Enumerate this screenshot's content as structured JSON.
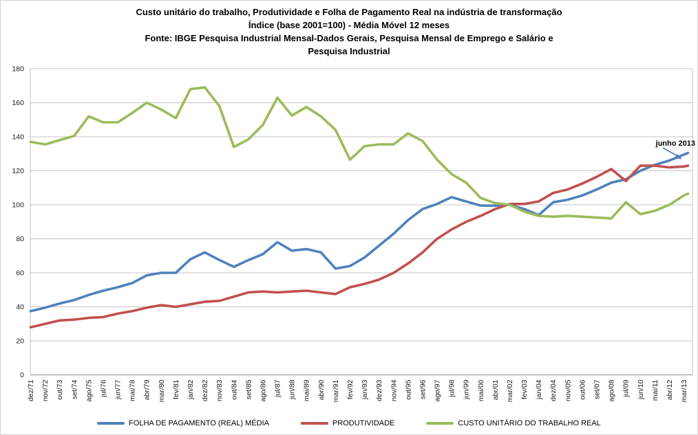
{
  "window": {
    "background": "#FFFFFF",
    "border_color": "#D3D3D3"
  },
  "chart_data": {
    "type": "line",
    "title_lines": [
      "Custo unitário do trabalho, Produtividade e Folha de Pagamento Real na indústria de transformação",
      "Índice (base 2001=100) - Média Móvel 12 meses",
      "Fonte: IBGE Pesquisa Industrial Mensal-Dados Gerais, Pesquisa Mensal de Emprego e Salário  e",
      "Pesquisa Industrial"
    ],
    "ylim": [
      0,
      180
    ],
    "yticks": [
      0,
      20,
      40,
      60,
      80,
      100,
      120,
      140,
      160,
      180
    ],
    "grid": true,
    "gridline_color": "#C3C3C3",
    "axis_line_color": "#8C8C8C",
    "legend_position": "bottom",
    "categories": [
      "dez/71",
      "nov/72",
      "out/73",
      "set/74",
      "ago/75",
      "jul/76",
      "jun/77",
      "mai/78",
      "abr/79",
      "mar/80",
      "fev/81",
      "jan/82",
      "dez/82",
      "nov/83",
      "out/84",
      "set/85",
      "ago/86",
      "jul/87",
      "jun/88",
      "mai/89",
      "abr/90",
      "mar/91",
      "fev/92",
      "jan/93",
      "dez/93",
      "nov/94",
      "out/95",
      "set/96",
      "ago/97",
      "jul/98",
      "jun/99",
      "mai/00",
      "abr/01",
      "mar/02",
      "fev/03",
      "jan/04",
      "dez/04",
      "nov/05",
      "out/06",
      "set/07",
      "ago/08",
      "jul/09",
      "jun/10",
      "mai/11",
      "abr/12",
      "mar/13"
    ],
    "series": [
      {
        "name": "FOLHA DE PAGAMENTO (REAL) MÉDIA",
        "color": "#4F81BD",
        "values": [
          37.5,
          39.5,
          42,
          44,
          47,
          49.5,
          51.5,
          54,
          58.5,
          60,
          60,
          68,
          72,
          67.5,
          63.5,
          67.5,
          71,
          78,
          73,
          74,
          72,
          62.5,
          64,
          69,
          76,
          83,
          91,
          97.5,
          100.5,
          104.5,
          102,
          99.5,
          99.5,
          100,
          97.5,
          94,
          101.5,
          103,
          105.5,
          109,
          113,
          115,
          120,
          123.5,
          126,
          129.5
        ],
        "end_value": 130.5
      },
      {
        "name": "PRODUTIVIDADE",
        "color": "#C0504D",
        "values": [
          28,
          30,
          32,
          32.5,
          33.5,
          34,
          36,
          37.5,
          39.5,
          41,
          40,
          41.5,
          43,
          43.5,
          46,
          48.5,
          49,
          48.5,
          49,
          49.5,
          48.5,
          47.5,
          51.5,
          53.5,
          56,
          60,
          65.5,
          72,
          80,
          85.5,
          90,
          93.5,
          97.5,
          100.5,
          100.5,
          102,
          107,
          109,
          112.5,
          116.5,
          121,
          114,
          123,
          123,
          122,
          122.5
        ],
        "end_value": 123
      },
      {
        "name": "CUSTO UNITÁRIO DO TRABALHO REAL",
        "color": "#9BBB59",
        "values": [
          137,
          135.5,
          138,
          140.5,
          152,
          148.5,
          148.5,
          154,
          160,
          156,
          151,
          168,
          169,
          158,
          134,
          138.5,
          147,
          163,
          152.5,
          157.5,
          152,
          144,
          126.5,
          134.5,
          135.5,
          135.5,
          142,
          137.5,
          126.5,
          118,
          113,
          104,
          101,
          100,
          96,
          93.5,
          93,
          93.5,
          93,
          92.5,
          92,
          101.5,
          94.5,
          96.5,
          100,
          105.5
        ],
        "end_value": 106.5
      }
    ],
    "annotation": {
      "text": "junho 2013",
      "target_series": "FOLHA DE PAGAMENTO (REAL) MÉDIA",
      "arrow_color": "#4F81BD"
    }
  }
}
